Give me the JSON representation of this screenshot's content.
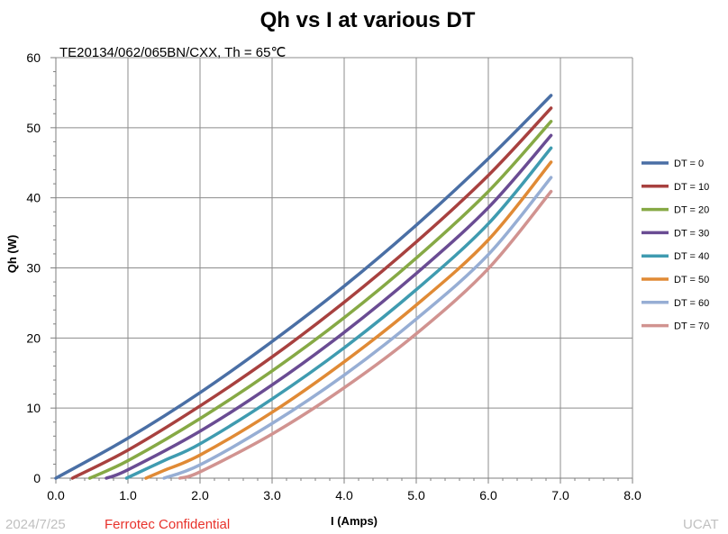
{
  "chart_data": {
    "type": "line",
    "title": "Qh vs I at various DT",
    "subtitle": "TE20134/062/065BN/CXX, Th = 65℃",
    "xlabel": "I (Amps)",
    "ylabel": "Qh (W)",
    "xlim": [
      0,
      8
    ],
    "ylim": [
      0,
      60
    ],
    "x_ticks": [
      "0.0",
      "1.0",
      "2.0",
      "3.0",
      "4.0",
      "5.0",
      "6.0",
      "7.0",
      "8.0"
    ],
    "y_ticks": [
      "0",
      "10",
      "20",
      "30",
      "40",
      "50",
      "60"
    ],
    "grid": true,
    "legend_position": "right",
    "series": [
      {
        "name": "DT = 0",
        "color": "#4a6fa5",
        "x": [
          0.0,
          1.0,
          2.0,
          3.0,
          4.0,
          5.0,
          6.0,
          6.87
        ],
        "y": [
          0.0,
          5.7,
          12.2,
          19.5,
          27.4,
          36.1,
          45.6,
          54.6
        ]
      },
      {
        "name": "DT = 10",
        "color": "#a8413f",
        "x": [
          0.23,
          1.0,
          2.0,
          3.0,
          4.0,
          5.0,
          6.0,
          6.87
        ],
        "y": [
          0.0,
          4.0,
          10.3,
          17.3,
          25.1,
          33.7,
          43.2,
          52.8
        ]
      },
      {
        "name": "DT = 20",
        "color": "#86a945",
        "x": [
          0.47,
          1.0,
          2.0,
          3.0,
          4.0,
          5.0,
          6.0,
          6.87
        ],
        "y": [
          0.0,
          2.5,
          8.5,
          15.3,
          22.9,
          31.4,
          40.9,
          50.9
        ]
      },
      {
        "name": "DT = 30",
        "color": "#6a4c93",
        "x": [
          0.7,
          1.0,
          2.0,
          3.0,
          4.0,
          5.0,
          6.0,
          6.87
        ],
        "y": [
          0.0,
          1.2,
          6.7,
          13.3,
          20.8,
          29.2,
          38.6,
          48.9
        ]
      },
      {
        "name": "DT = 40",
        "color": "#3f9bb0",
        "x": [
          0.98,
          1.5,
          2.0,
          3.0,
          4.0,
          5.0,
          6.0,
          6.87
        ],
        "y": [
          0.0,
          2.5,
          4.9,
          11.3,
          18.6,
          26.9,
          36.3,
          47.1
        ]
      },
      {
        "name": "DT = 50",
        "color": "#e08a35",
        "x": [
          1.25,
          1.5,
          2.0,
          3.0,
          4.0,
          5.0,
          6.0,
          6.87
        ],
        "y": [
          0.0,
          1.1,
          3.3,
          9.4,
          16.6,
          24.7,
          34.0,
          45.1
        ]
      },
      {
        "name": "DT = 60",
        "color": "#97aed4",
        "x": [
          1.5,
          2.0,
          3.0,
          4.0,
          5.0,
          6.0,
          6.87
        ],
        "y": [
          0.0,
          1.9,
          7.8,
          14.7,
          22.7,
          31.9,
          42.9
        ]
      },
      {
        "name": "DT = 70",
        "color": "#d19390",
        "x": [
          1.72,
          2.0,
          3.0,
          4.0,
          5.0,
          6.0,
          6.87
        ],
        "y": [
          0.0,
          0.9,
          6.3,
          12.9,
          20.6,
          29.9,
          40.9
        ]
      }
    ]
  },
  "footer": {
    "date": "2024/7/25",
    "confidential": "Ferrotec Confidential",
    "org": "UCAT"
  }
}
